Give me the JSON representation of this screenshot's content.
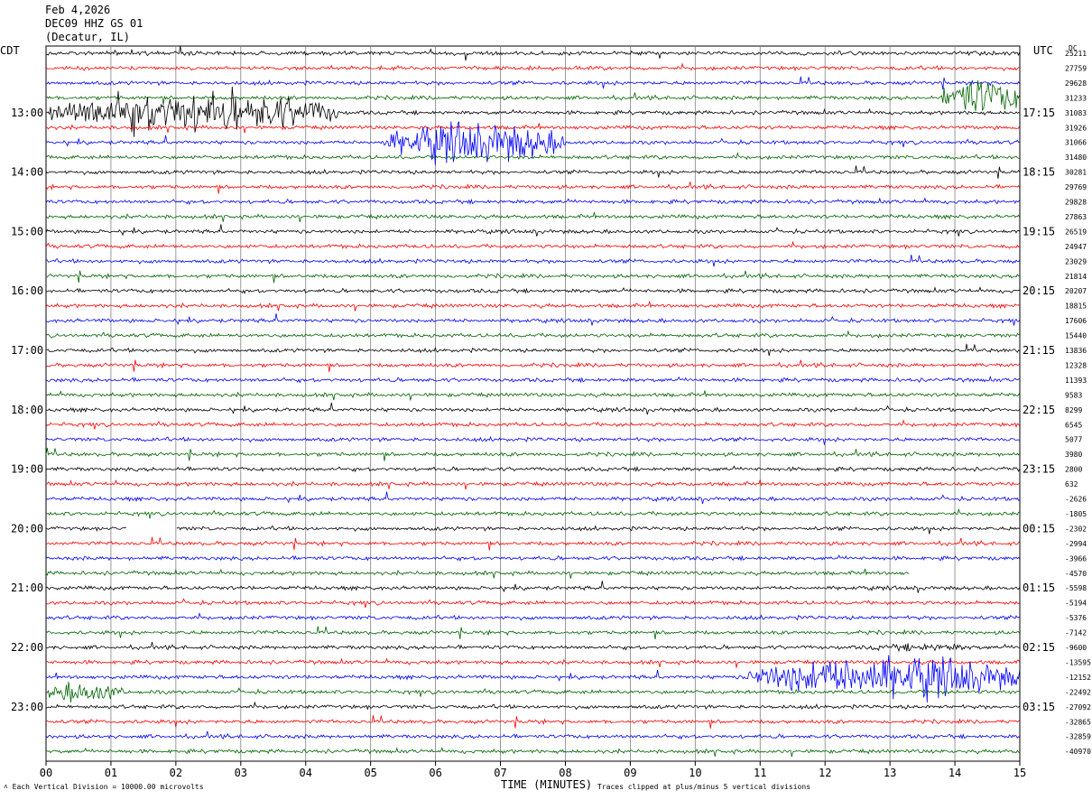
{
  "header": {
    "date": "Feb 4,2026",
    "station": "DEC09 HHZ GS 01",
    "location": "(Decatur, IL)"
  },
  "left_tz": "CDT",
  "right_tz": "UTC",
  "dc_label": "DC",
  "footer": {
    "scale_note": "Each Vertical Division = 10000.00 microvolts",
    "clip_note": "Traces clipped at plus/minus 5 vertical divisions",
    "xlabel": "TIME (MINUTES)"
  },
  "colors": {
    "trace_cycle": [
      "#000000",
      "#ff0000",
      "#0000ff",
      "#006400"
    ],
    "grid": "#808080"
  },
  "chart_data": {
    "type": "line",
    "title": "",
    "xlabel": "TIME (MINUTES)",
    "xlim": [
      0,
      15
    ],
    "x_ticks": [
      "00",
      "01",
      "02",
      "03",
      "04",
      "05",
      "06",
      "07",
      "08",
      "09",
      "10",
      "11",
      "12",
      "13",
      "14",
      "15"
    ],
    "rows_per_hour": 4,
    "row_count": 48,
    "start_time_cdt": "12:00",
    "left_hour_labels": [
      "13:00",
      "14:00",
      "15:00",
      "16:00",
      "17:00",
      "18:00",
      "19:00",
      "20:00",
      "21:00",
      "22:00",
      "23:00"
    ],
    "right_hour_labels": [
      "17:15",
      "18:15",
      "19:15",
      "20:15",
      "21:15",
      "22:15",
      "23:15",
      "00:15",
      "01:15",
      "02:15",
      "03:15"
    ],
    "dc_offsets": [
      "25211",
      "27759",
      "29628",
      "31233",
      "31083",
      "31926",
      "31066",
      "31480",
      "30281",
      "29769",
      "29828",
      "27863",
      "26519",
      "24947",
      "23029",
      "21814",
      "20207",
      "18815",
      "17606",
      "15440",
      "13836",
      "12328",
      "11393",
      "9583",
      "8299",
      "6545",
      "5077",
      "3980",
      "2800",
      "632",
      "-2626",
      "-1805",
      "-2302",
      "-2994",
      "-3966",
      "-4570",
      "-5598",
      "-5194",
      "-5376",
      "-7142",
      "-9600",
      "-13595",
      "-12152",
      "-22492",
      "-27092",
      "-32865",
      "-32859",
      "-40970"
    ],
    "events": [
      {
        "row": 4,
        "start_min": 0.0,
        "end_min": 4.5,
        "amplitude": 3.2
      },
      {
        "row": 3,
        "start_min": 13.8,
        "end_min": 15.0,
        "amplitude": 3.0
      },
      {
        "row": 6,
        "start_min": 5.2,
        "end_min": 8.0,
        "amplitude": 3.0
      },
      {
        "row": 42,
        "start_min": 10.8,
        "end_min": 15.0,
        "amplitude": 3.2
      },
      {
        "row": 43,
        "start_min": 0.0,
        "end_min": 1.2,
        "amplitude": 1.6
      },
      {
        "row": 40,
        "start_min": 12.5,
        "end_min": 14.5,
        "amplitude": 0.6
      }
    ],
    "gaps": [
      {
        "row": 32,
        "start_min": 1.25,
        "end_min": 2.0
      },
      {
        "row": 35,
        "start_min": 13.3,
        "end_min": 15.0
      }
    ]
  }
}
